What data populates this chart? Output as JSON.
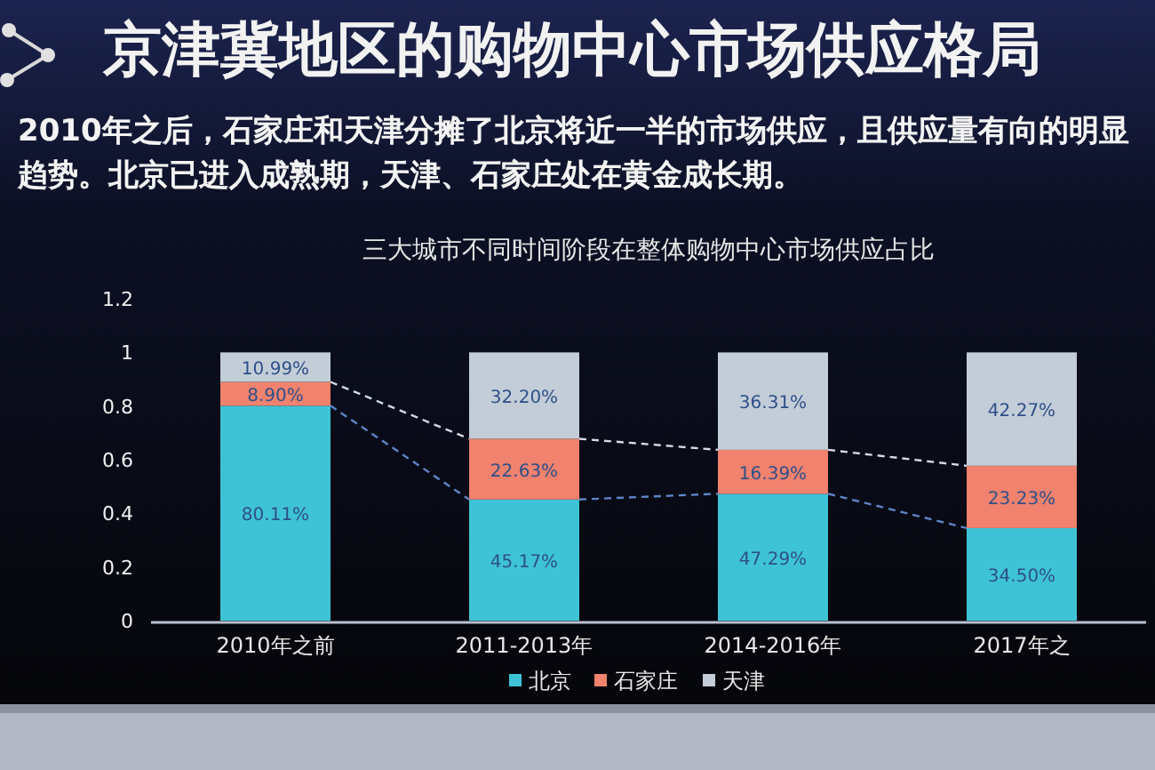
{
  "chart_data": {
    "type": "bar",
    "stacked": true,
    "title": "京津冀地区的购物中心市场供应格局",
    "subtitle": "2010年之后，石家庄和天津分摊了北京将近一半的市场供应，且供应量有向的明显趋势。北京已进入成熟期，天津、石家庄处在黄金成长期。",
    "annotations": [
      "三大城市不同时间阶段在整体购物中心市场供应占比"
    ],
    "categories": [
      "2010年之前",
      "2011-2013年",
      "2014-2016年",
      "2017年之"
    ],
    "series": [
      {
        "name": "北京",
        "color": "#3ec3d6",
        "values": [
          0.8011,
          0.4517,
          0.4729,
          0.345
        ],
        "value_labels": [
          "80.11%",
          "45.17%",
          "47.29%",
          "34.50%"
        ]
      },
      {
        "name": "石家庄",
        "color": "#f0826e",
        "values": [
          0.089,
          0.2263,
          0.1639,
          0.2323
        ],
        "value_labels": [
          "8.90%",
          "22.63%",
          "16.39%",
          "23.23%"
        ]
      },
      {
        "name": "天津",
        "color": "#c3cdd8",
        "values": [
          0.1099,
          0.322,
          0.3631,
          0.4227
        ],
        "value_labels": [
          "10.99%",
          "32.20%",
          "36.31%",
          "42.27%"
        ]
      }
    ],
    "ylim": [
      0,
      1.2
    ],
    "yticks": [
      0,
      0.2,
      0.4,
      0.6,
      0.8,
      1,
      1.2
    ],
    "grid": false,
    "legend": "bottom"
  }
}
